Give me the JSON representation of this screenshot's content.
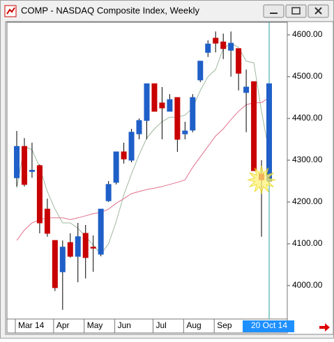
{
  "window": {
    "title": "COMP - NASDAQ Composite Index, Weekly"
  },
  "chart_data": {
    "type": "candlestick",
    "categories": [
      "Mar 14",
      null,
      null,
      null,
      null,
      "Apr",
      null,
      null,
      null,
      "May",
      null,
      null,
      null,
      "Jun",
      null,
      null,
      null,
      null,
      "Jul",
      null,
      null,
      null,
      "Aug",
      null,
      null,
      null,
      "Sep",
      null,
      null,
      null,
      null,
      null,
      null,
      "20 Oct 14"
    ],
    "open": [
      4258,
      4333,
      4273,
      4287,
      4183,
      4108,
      4033,
      4103,
      4070,
      4125,
      4092,
      4075,
      4203,
      4247,
      4320,
      4300,
      4363,
      4395,
      4483,
      4437,
      4417,
      4450,
      4363,
      4372,
      4492,
      4558,
      4592,
      4583,
      4563,
      4567,
      4462,
      4488,
      4267,
      4250
    ],
    "high": [
      4370,
      4353,
      4342,
      4290,
      4208,
      4108,
      4108,
      4125,
      4150,
      4145,
      4120,
      4183,
      4250,
      4320,
      4342,
      4375,
      4400,
      4483,
      4483,
      4475,
      4458,
      4450,
      4392,
      4458,
      4537,
      4587,
      4608,
      4603,
      4608,
      4567,
      4517,
      4488,
      4300,
      4483
    ],
    "low": [
      4237,
      4237,
      4258,
      4125,
      4117,
      3987,
      3942,
      4067,
      4008,
      4017,
      4033,
      4070,
      4200,
      4242,
      4292,
      4295,
      4350,
      4350,
      4417,
      4350,
      4417,
      4320,
      4350,
      4367,
      4487,
      4547,
      4558,
      4542,
      4500,
      4467,
      4367,
      4275,
      4117,
      4250
    ],
    "close": [
      4333,
      4242,
      4276,
      4150,
      4125,
      3995,
      4092,
      4070,
      4117,
      4067,
      4090,
      4183,
      4242,
      4320,
      4303,
      4367,
      4395,
      4483,
      4417,
      4425,
      4445,
      4350,
      4370,
      4450,
      4537,
      4578,
      4580,
      4567,
      4580,
      4508,
      4475,
      4275,
      4253,
      4483
    ],
    "up_color": "#1f5fc8",
    "down_color": "#c80000",
    "moving_averages": [
      {
        "color": "#9fb89f",
        "values": [
          4233,
          4333,
          4325,
          4283,
          4225,
          4183,
          4150,
          4150,
          4137,
          4117,
          4097,
          4075,
          4100,
          4153,
          4217,
          4267,
          4313,
          4353,
          4375,
          4392,
          4403,
          4403,
          4408,
          4425,
          4467,
          4500,
          4517,
          4567,
          4580,
          4570,
          4537,
          4533,
          4417,
          4317
        ]
      },
      {
        "color": "#e0708c",
        "values": [
          4108,
          4133,
          4150,
          4158,
          4162,
          4162,
          4162,
          4158,
          4162,
          4167,
          4172,
          4175,
          4183,
          4197,
          4208,
          4220,
          4225,
          4230,
          4233,
          4237,
          4242,
          4247,
          4253,
          4283,
          4308,
          4333,
          4358,
          4375,
          4397,
          4417,
          4433,
          4437,
          4438,
          4450
        ]
      }
    ],
    "ylim": [
      3920,
      4630
    ],
    "yticks": [
      {
        "value": 4000,
        "label": "4000.00"
      },
      {
        "value": 4100,
        "label": "4100.00"
      },
      {
        "value": 4200,
        "label": "4200.00"
      },
      {
        "value": 4300,
        "label": "4300.00"
      },
      {
        "value": 4400,
        "label": "4400.00"
      },
      {
        "value": 4500,
        "label": "4500.00"
      },
      {
        "value": 4600,
        "label": "4600.00"
      }
    ]
  }
}
